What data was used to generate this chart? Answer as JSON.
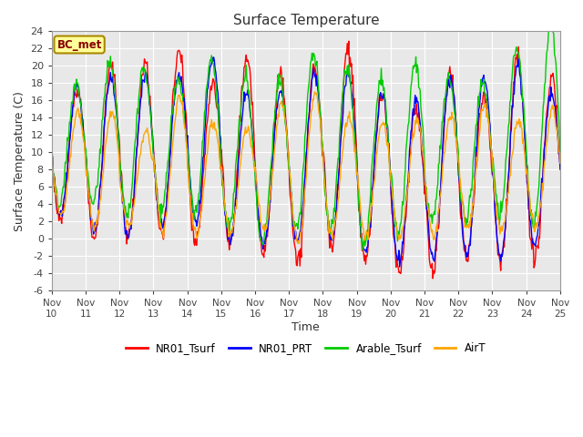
{
  "title": "Surface Temperature",
  "xlabel": "Time",
  "ylabel": "Surface Temperature (C)",
  "ylim": [
    -6,
    24
  ],
  "yticks": [
    -6,
    -4,
    -2,
    0,
    2,
    4,
    6,
    8,
    10,
    12,
    14,
    16,
    18,
    20,
    22,
    24
  ],
  "xtick_labels": [
    "Nov 10",
    "Nov 11",
    "Nov 12",
    "Nov 13",
    "Nov 14",
    "Nov 15",
    "Nov 16",
    "Nov 17",
    "Nov 18",
    "Nov 19",
    "Nov 20",
    "Nov 21",
    "Nov 22",
    "Nov 23",
    "Nov 24",
    "Nov 25"
  ],
  "series": {
    "NR01_Tsurf": {
      "color": "#ff0000",
      "linewidth": 1.0
    },
    "NR01_PRT": {
      "color": "#0000ff",
      "linewidth": 1.0
    },
    "Arable_Tsurf": {
      "color": "#00cc00",
      "linewidth": 1.0
    },
    "AirT": {
      "color": "#ffa500",
      "linewidth": 1.0
    }
  },
  "annotation_text": "BC_met",
  "annotation_bg": "#ffff99",
  "annotation_border": "#aa8800",
  "annotation_text_color": "#880000",
  "plot_bg_color": "#e8e8e8",
  "grid_color": "#ffffff",
  "figsize": [
    6.4,
    4.8
  ],
  "dpi": 100
}
